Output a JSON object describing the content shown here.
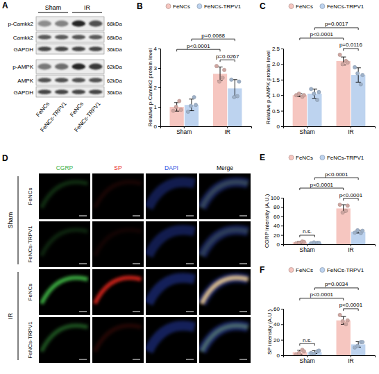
{
  "blot": {
    "panel_label": "A",
    "groups": [
      "Sham",
      "IR"
    ],
    "lanes": [
      "FeNCs",
      "FeNCs-TRPV1",
      "FeNCs",
      "FeNCs-TRPV1"
    ],
    "rows": [
      {
        "label": "p-Camkk2",
        "size": "68kDa",
        "intensity": [
          0.45,
          0.5,
          0.95,
          0.75
        ]
      },
      {
        "label": "Camkk2",
        "size": "68kDa",
        "intensity": [
          0.7,
          0.7,
          0.72,
          0.7
        ]
      },
      {
        "label": "GAPDH",
        "size": "36kDa",
        "intensity": [
          0.8,
          0.8,
          0.8,
          0.8
        ]
      },
      {
        "label": "p-AMPK",
        "size": "62kDa",
        "intensity": [
          0.55,
          0.6,
          0.95,
          0.85
        ]
      },
      {
        "label": "AMPK",
        "size": "62kDa",
        "intensity": [
          0.75,
          0.75,
          0.75,
          0.75
        ]
      },
      {
        "label": "GAPDH",
        "size": "36kDa",
        "intensity": [
          0.8,
          0.8,
          0.8,
          0.8
        ]
      }
    ]
  },
  "images": {
    "panel_label": "D",
    "columns": [
      "CGRP",
      "SP",
      "DAPI",
      "Merge"
    ],
    "colors": [
      "#3cb043",
      "#e8261e",
      "#3050e0",
      "#000000"
    ],
    "groups": [
      {
        "label": "Sham",
        "rows": [
          {
            "label": "FeNCs",
            "signal": [
              0.25,
              0.1,
              0.35
            ]
          },
          {
            "label": "FeNCs-TRPV1",
            "signal": [
              0.2,
              0.08,
              0.35
            ]
          }
        ]
      },
      {
        "label": "IR",
        "rows": [
          {
            "label": "FeNCs",
            "signal": [
              0.95,
              0.85,
              0.4
            ]
          },
          {
            "label": "FeNCs-TRPV1",
            "signal": [
              0.45,
              0.15,
              0.4
            ]
          }
        ]
      }
    ]
  },
  "chart_data": [
    {
      "type": "bar",
      "panel_label": "B",
      "y_label": "Relative p-Camkk2 protein level",
      "categories": [
        "Sham",
        "IR"
      ],
      "series": [
        {
          "name": "FeNCs",
          "color": "#f6c6c0",
          "values": [
            1.0,
            2.7
          ],
          "errors": [
            0.22,
            0.35
          ],
          "points": [
            [
              0.8,
              1.3,
              1.0,
              0.85
            ],
            [
              3.1,
              2.5,
              2.3,
              2.9
            ]
          ]
        },
        {
          "name": "FeNCs-TRPV1",
          "color": "#bdd3ef",
          "values": [
            1.1,
            1.95
          ],
          "errors": [
            0.3,
            0.45
          ],
          "points": [
            [
              0.75,
              1.5,
              1.05,
              1.1
            ],
            [
              2.4,
              1.55,
              1.5,
              2.3
            ]
          ]
        }
      ],
      "ylim": [
        0,
        4
      ],
      "yticks": [
        0,
        1,
        2,
        3,
        4
      ],
      "legend": "top",
      "comparisons": [
        {
          "from": [
            "IR",
            "FeNCs"
          ],
          "to": [
            "IR",
            "FeNCs-TRPV1"
          ],
          "label": "p=0.0267"
        },
        {
          "from": [
            "Sham",
            "FeNCs"
          ],
          "to": [
            "IR",
            "FeNCs"
          ],
          "label": "p<0.0001"
        },
        {
          "from": [
            "Sham",
            "FeNCs-TRPV1"
          ],
          "to": [
            "IR",
            "FeNCs-TRPV1"
          ],
          "label": "p=0.0088"
        }
      ]
    },
    {
      "type": "bar",
      "panel_label": "C",
      "y_label": "Relative p-AMPK protein level",
      "categories": [
        "Sham",
        "IR"
      ],
      "series": [
        {
          "name": "FeNCs",
          "color": "#f6c6c0",
          "values": [
            1.0,
            2.1
          ],
          "errors": [
            0.05,
            0.13
          ],
          "points": [
            [
              1.0,
              0.95,
              1.05,
              1.0
            ],
            [
              2.3,
              2.1,
              2.0,
              2.05
            ]
          ]
        },
        {
          "name": "FeNCs-TRPV1",
          "color": "#bdd3ef",
          "values": [
            1.05,
            1.65
          ],
          "errors": [
            0.15,
            0.23
          ],
          "points": [
            [
              1.2,
              0.85,
              1.05,
              1.1
            ],
            [
              1.9,
              1.35,
              1.7,
              1.65
            ]
          ]
        }
      ],
      "ylim": [
        0,
        2.5
      ],
      "yticks": [
        0,
        0.5,
        {
          "value": 1,
          "label": "1.0"
        },
        1.5,
        {
          "value": 2,
          "label": "2.0"
        },
        2.5
      ],
      "legend": "top",
      "comparisons": [
        {
          "from": [
            "IR",
            "FeNCs"
          ],
          "to": [
            "IR",
            "FeNCs-TRPV1"
          ],
          "label": "p=0.0116"
        },
        {
          "from": [
            "Sham",
            "FeNCs"
          ],
          "to": [
            "IR",
            "FeNCs"
          ],
          "label": "p<0.0001"
        },
        {
          "from": [
            "Sham",
            "FeNCs-TRPV1"
          ],
          "to": [
            "IR",
            "FeNCs-TRPV1"
          ],
          "label": "p=0.0017"
        }
      ]
    },
    {
      "type": "bar",
      "panel_label": "E",
      "y_label": "CGRP intensity (A.U.)",
      "categories": [
        "Sham",
        "IR"
      ],
      "series": [
        {
          "name": "FeNCs",
          "color": "#f6c6c0",
          "values": [
            4,
            77
          ],
          "errors": [
            2,
            8
          ],
          "points": [
            [
              2,
              6,
              3,
              5
            ],
            [
              85,
              72,
              68,
              83
            ]
          ]
        },
        {
          "name": "FeNCs-TRPV1",
          "color": "#bdd3ef",
          "values": [
            3,
            27
          ],
          "errors": [
            1,
            3
          ],
          "points": [
            [
              2,
              3,
              4,
              3
            ],
            [
              25,
              24,
              30,
              29
            ]
          ]
        }
      ],
      "ylim": [
        0,
        100
      ],
      "yticks": [
        0,
        20,
        40,
        60,
        80,
        100
      ],
      "legend": "top",
      "comparisons": [
        {
          "from": [
            "Sham",
            "FeNCs"
          ],
          "to": [
            "Sham",
            "FeNCs-TRPV1"
          ],
          "label": "n.s."
        },
        {
          "from": [
            "IR",
            "FeNCs"
          ],
          "to": [
            "IR",
            "FeNCs-TRPV1"
          ],
          "label": "p<0.0001"
        },
        {
          "from": [
            "Sham",
            "FeNCs"
          ],
          "to": [
            "IR",
            "FeNCs"
          ],
          "label": "p<0.0001"
        },
        {
          "from": [
            "Sham",
            "FeNCs-TRPV1"
          ],
          "to": [
            "IR",
            "FeNCs-TRPV1"
          ],
          "label": "p<0.0001"
        }
      ]
    },
    {
      "type": "bar",
      "panel_label": "F",
      "y_label": "SP intensity (A.U.)",
      "categories": [
        "Sham",
        "IR"
      ],
      "series": [
        {
          "name": "FeNCs",
          "color": "#f6c6c0",
          "values": [
            4,
            45
          ],
          "errors": [
            2.5,
            5
          ],
          "points": [
            [
              1,
              7,
              3,
              5
            ],
            [
              52,
              40,
              44,
              45
            ]
          ]
        },
        {
          "name": "FeNCs-TRPV1",
          "color": "#bdd3ef",
          "values": [
            4,
            14
          ],
          "errors": [
            1.8,
            3.5
          ],
          "points": [
            [
              3,
              5,
              2,
              6
            ],
            [
              10,
              17,
              12,
              17
            ]
          ]
        }
      ],
      "ylim": [
        0,
        60
      ],
      "yticks": [
        0,
        20,
        40,
        60
      ],
      "legend": "top",
      "comparisons": [
        {
          "from": [
            "Sham",
            "FeNCs"
          ],
          "to": [
            "Sham",
            "FeNCs-TRPV1"
          ],
          "label": "n.s."
        },
        {
          "from": [
            "IR",
            "FeNCs"
          ],
          "to": [
            "IR",
            "FeNCs-TRPV1"
          ],
          "label": "p<0.0001"
        },
        {
          "from": [
            "Sham",
            "FeNCs"
          ],
          "to": [
            "IR",
            "FeNCs"
          ],
          "label": "p<0.0001"
        },
        {
          "from": [
            "Sham",
            "FeNCs-TRPV1"
          ],
          "to": [
            "IR",
            "FeNCs-TRPV1"
          ],
          "label": "p=0.0034"
        }
      ]
    }
  ]
}
